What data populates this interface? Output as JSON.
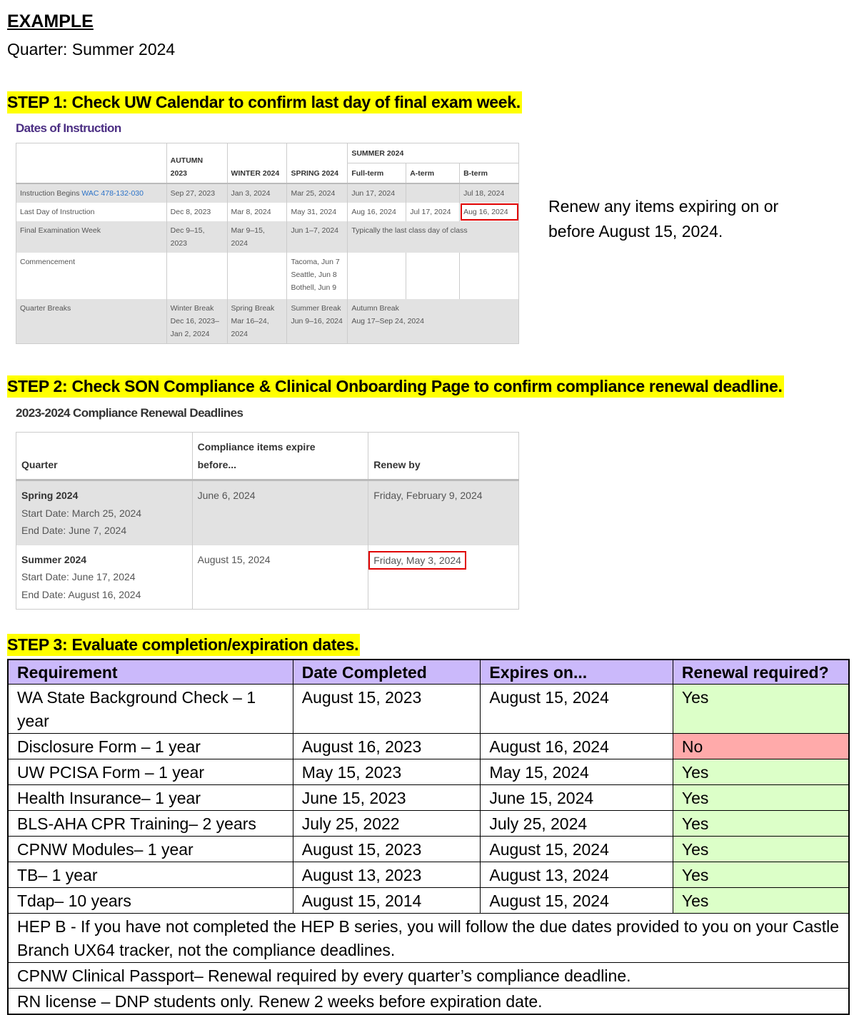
{
  "heading": "EXAMPLE",
  "quarter": "Quarter: Summer 2024",
  "step1": "STEP 1: Check UW Calendar to confirm last day of final exam week.",
  "step2": "STEP 2: Check SON Compliance & Clinical Onboarding Page to confirm compliance renewal deadline.",
  "step3": "STEP 3: Evaluate completion/expiration dates.",
  "side_note": [
    "Renew any items expiring on or",
    "before August 15, 2024."
  ],
  "instruction": {
    "title": "Dates of Instruction",
    "headers": {
      "autumn": [
        "AUTUMN",
        "2023"
      ],
      "winter": "WINTER 2024",
      "spring": "SPRING 2024",
      "summer": "SUMMER 2024",
      "full": "Full-term",
      "a": "A-term",
      "b": "B-term"
    },
    "rows": [
      {
        "label": "Instruction Begins",
        "link": "WAC 478-132-030",
        "cells": [
          "Sep 27, 2023",
          "Jan 3, 2024",
          "Mar 25, 2024",
          "Jun 17, 2024",
          "",
          "Jul 18, 2024"
        ]
      },
      {
        "label": "Last Day of Instruction",
        "cells": [
          "Dec 8, 2023",
          "Mar 8, 2024",
          "May 31, 2024",
          "Aug 16, 2024",
          "Jul 17, 2024",
          "Aug 16, 2024"
        ]
      },
      {
        "label": "Final Examination Week",
        "cells": [
          "Dec 9–15, 2023",
          [
            "Mar 9–15,",
            "2024"
          ],
          "Jun 1–7, 2024",
          "Typically the last class day of class"
        ]
      },
      {
        "label": "Commencement",
        "cells": [
          "",
          "",
          [
            "Tacoma, Jun 7",
            "Seattle, Jun 8",
            "Bothell, Jun 9"
          ],
          "",
          "",
          ""
        ]
      },
      {
        "label": "Quarter Breaks",
        "cells": [
          [
            "Winter Break",
            "Dec 16, 2023–",
            "Jan 2, 2024"
          ],
          [
            "Spring Break",
            "Mar 16–24,",
            "2024"
          ],
          [
            "Summer Break",
            "Jun 9–16, 2024"
          ],
          [
            "Autumn Break",
            "Aug 17–Sep 24, 2024"
          ]
        ]
      }
    ]
  },
  "compliance": {
    "title": "2023-2024 Compliance Renewal Deadlines",
    "headers": [
      "Quarter",
      [
        "Compliance items expire",
        "before..."
      ],
      "Renew by"
    ],
    "rows": [
      {
        "quarter": "Spring 2024",
        "start": "Start Date: March 25, 2024",
        "end": "End Date: June 7, 2024",
        "expire": "June 6, 2024",
        "renew": "Friday, February 9, 2024"
      },
      {
        "quarter": "Summer 2024",
        "start": "Start Date: June 17, 2024",
        "end": "End Date: August 16, 2024",
        "expire": "August 15, 2024",
        "renew": "Friday, May 3, 2024"
      }
    ]
  },
  "evaluation": {
    "headers": [
      "Requirement",
      "Date Completed",
      "Expires on...",
      "Renewal required?"
    ],
    "rows": [
      [
        "WA State Background Check – 1 year",
        "August 15, 2023",
        "August 15, 2024",
        "Yes"
      ],
      [
        "Disclosure Form – 1 year",
        "August 16, 2023",
        "August 16, 2024",
        "No"
      ],
      [
        "UW PCISA Form – 1 year",
        "May 15, 2023",
        "May 15, 2024",
        "Yes"
      ],
      [
        "Health Insurance– 1 year",
        "June 15, 2023",
        "June 15, 2024",
        "Yes"
      ],
      [
        "BLS-AHA CPR Training– 2 years",
        "July 25, 2022",
        "July 25, 2024",
        "Yes"
      ],
      [
        "CPNW Modules– 1 year",
        "August 15, 2023",
        "August 15, 2024",
        "Yes"
      ],
      [
        "TB– 1 year",
        "August 13, 2023",
        "August 13, 2024",
        "Yes"
      ],
      [
        "Tdap– 10 years",
        "August 15, 2014",
        "August 15, 2024",
        "Yes"
      ]
    ],
    "notes": [
      "HEP B - If you have not completed the HEP B series, you will follow the due dates provided to you on your Castle Branch UX64 tracker, not the compliance deadlines.",
      "CPNW Clinical Passport– Renewal required by every quarter’s compliance deadline.",
      "RN license – DNP students only. Renew 2 weeks before expiration date."
    ]
  },
  "colors": {
    "highlight": "#ffff00",
    "header_purple": "#cbb9fb",
    "yes_green": "#dcffc8",
    "no_red": "#ffaaaa",
    "title_purple": "#4b2e83",
    "callout_red": "#e00000"
  }
}
